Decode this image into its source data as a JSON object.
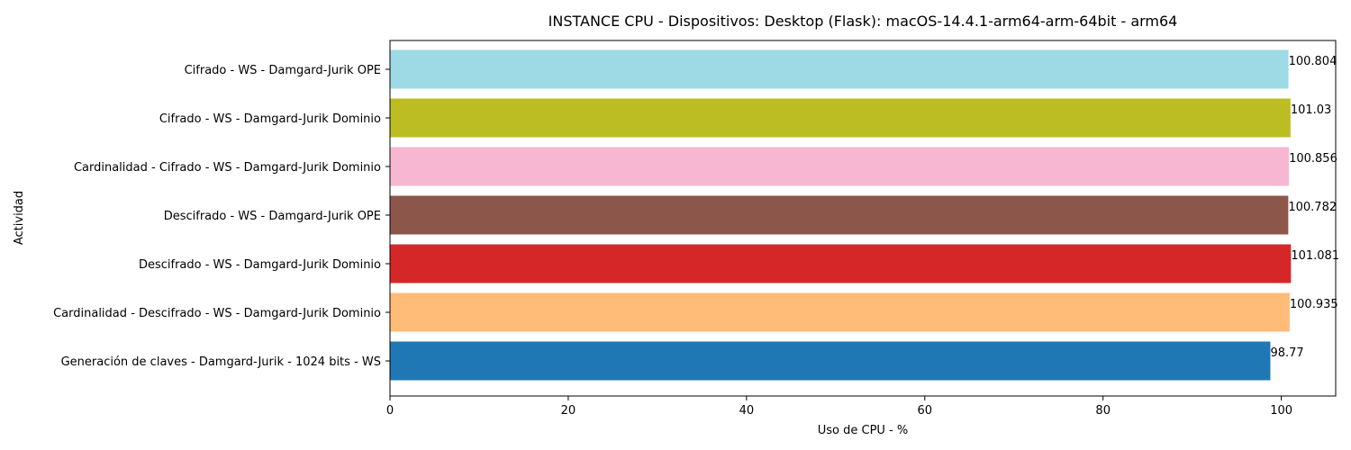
{
  "chart_data": {
    "type": "bar",
    "orientation": "horizontal",
    "title": "INSTANCE CPU - Dispositivos: Desktop (Flask): macOS-14.4.1-arm64-arm-64bit - arm64",
    "xlabel": "Uso de CPU - %",
    "ylabel": "Actividad",
    "xlim": [
      0,
      106.1
    ],
    "xticks": [
      0,
      20,
      40,
      60,
      80,
      100
    ],
    "grid": false,
    "categories": [
      "Generación de claves - Damgard-Jurik - 1024 bits - WS",
      "Cardinalidad - Descifrado - WS - Damgard-Jurik Dominio",
      "Descifrado - WS - Damgard-Jurik Dominio",
      "Descifrado - WS - Damgard-Jurik OPE",
      "Cardinalidad - Cifrado - WS - Damgard-Jurik Dominio",
      "Cifrado - WS - Damgard-Jurik Dominio",
      "Cifrado - WS - Damgard-Jurik OPE"
    ],
    "values": [
      98.77,
      100.935,
      101.081,
      100.782,
      100.856,
      101.03,
      100.804
    ],
    "value_labels": [
      "98.77",
      "100.935",
      "101.081",
      "100.782",
      "100.856",
      "101.03",
      "100.804"
    ],
    "colors": [
      "#1f77b4",
      "#ffbb78",
      "#d62728",
      "#8c564b",
      "#f7b6d2",
      "#bcbd22",
      "#9edae5"
    ]
  }
}
